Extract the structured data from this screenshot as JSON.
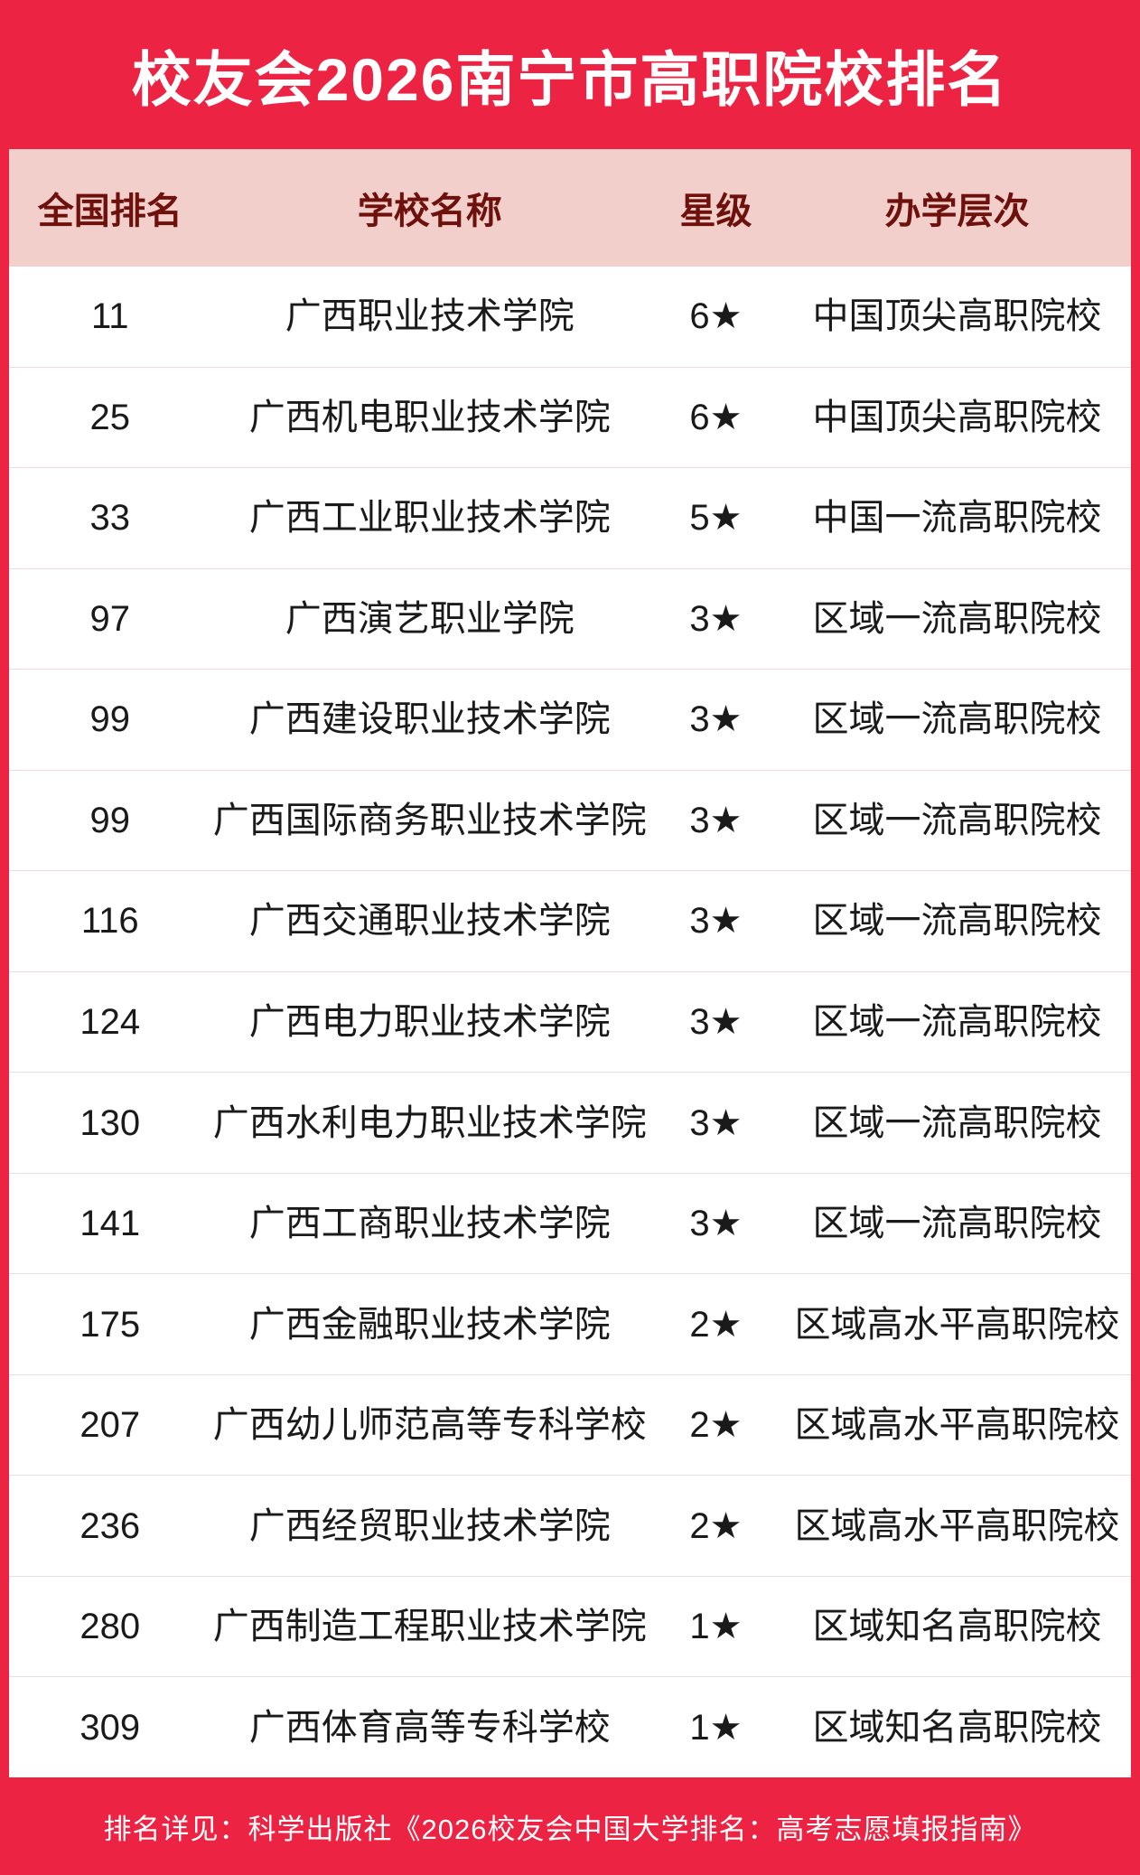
{
  "poster": {
    "title": "校友会2026南宁市高职院校排名",
    "footer_note": "排名详见：科学出版社《2026校友会中国大学排名：高考志愿填报指南》"
  },
  "colors": {
    "brand_red": "#ED2343",
    "header_pink": "#F2CFCB",
    "header_text_maroon": "#6E100B",
    "body_text": "#1A1A1A",
    "row_divider": "#F2DADA",
    "title_text": "#FFFFFF"
  },
  "chart_data": {
    "type": "table",
    "title": "校友会2026南宁市高职院校排名",
    "columns": [
      "全国排名",
      "学校名称",
      "星级",
      "办学层次"
    ],
    "rows": [
      {
        "rank": "11",
        "school": "广西职业技术学院",
        "stars": "6★",
        "level": "中国顶尖高职院校"
      },
      {
        "rank": "25",
        "school": "广西机电职业技术学院",
        "stars": "6★",
        "level": "中国顶尖高职院校"
      },
      {
        "rank": "33",
        "school": "广西工业职业技术学院",
        "stars": "5★",
        "level": "中国一流高职院校"
      },
      {
        "rank": "97",
        "school": "广西演艺职业学院",
        "stars": "3★",
        "level": "区域一流高职院校"
      },
      {
        "rank": "99",
        "school": "广西建设职业技术学院",
        "stars": "3★",
        "level": "区域一流高职院校"
      },
      {
        "rank": "99",
        "school": "广西国际商务职业技术学院",
        "stars": "3★",
        "level": "区域一流高职院校"
      },
      {
        "rank": "116",
        "school": "广西交通职业技术学院",
        "stars": "3★",
        "level": "区域一流高职院校"
      },
      {
        "rank": "124",
        "school": "广西电力职业技术学院",
        "stars": "3★",
        "level": "区域一流高职院校"
      },
      {
        "rank": "130",
        "school": "广西水利电力职业技术学院",
        "stars": "3★",
        "level": "区域一流高职院校"
      },
      {
        "rank": "141",
        "school": "广西工商职业技术学院",
        "stars": "3★",
        "level": "区域一流高职院校"
      },
      {
        "rank": "175",
        "school": "广西金融职业技术学院",
        "stars": "2★",
        "level": "区域高水平高职院校"
      },
      {
        "rank": "207",
        "school": "广西幼儿师范高等专科学校",
        "stars": "2★",
        "level": "区域高水平高职院校"
      },
      {
        "rank": "236",
        "school": "广西经贸职业技术学院",
        "stars": "2★",
        "level": "区域高水平高职院校"
      },
      {
        "rank": "280",
        "school": "广西制造工程职业技术学院",
        "stars": "1★",
        "level": "区域知名高职院校"
      },
      {
        "rank": "309",
        "school": "广西体育高等专科学校",
        "stars": "1★",
        "level": "区域知名高职院校"
      }
    ]
  }
}
